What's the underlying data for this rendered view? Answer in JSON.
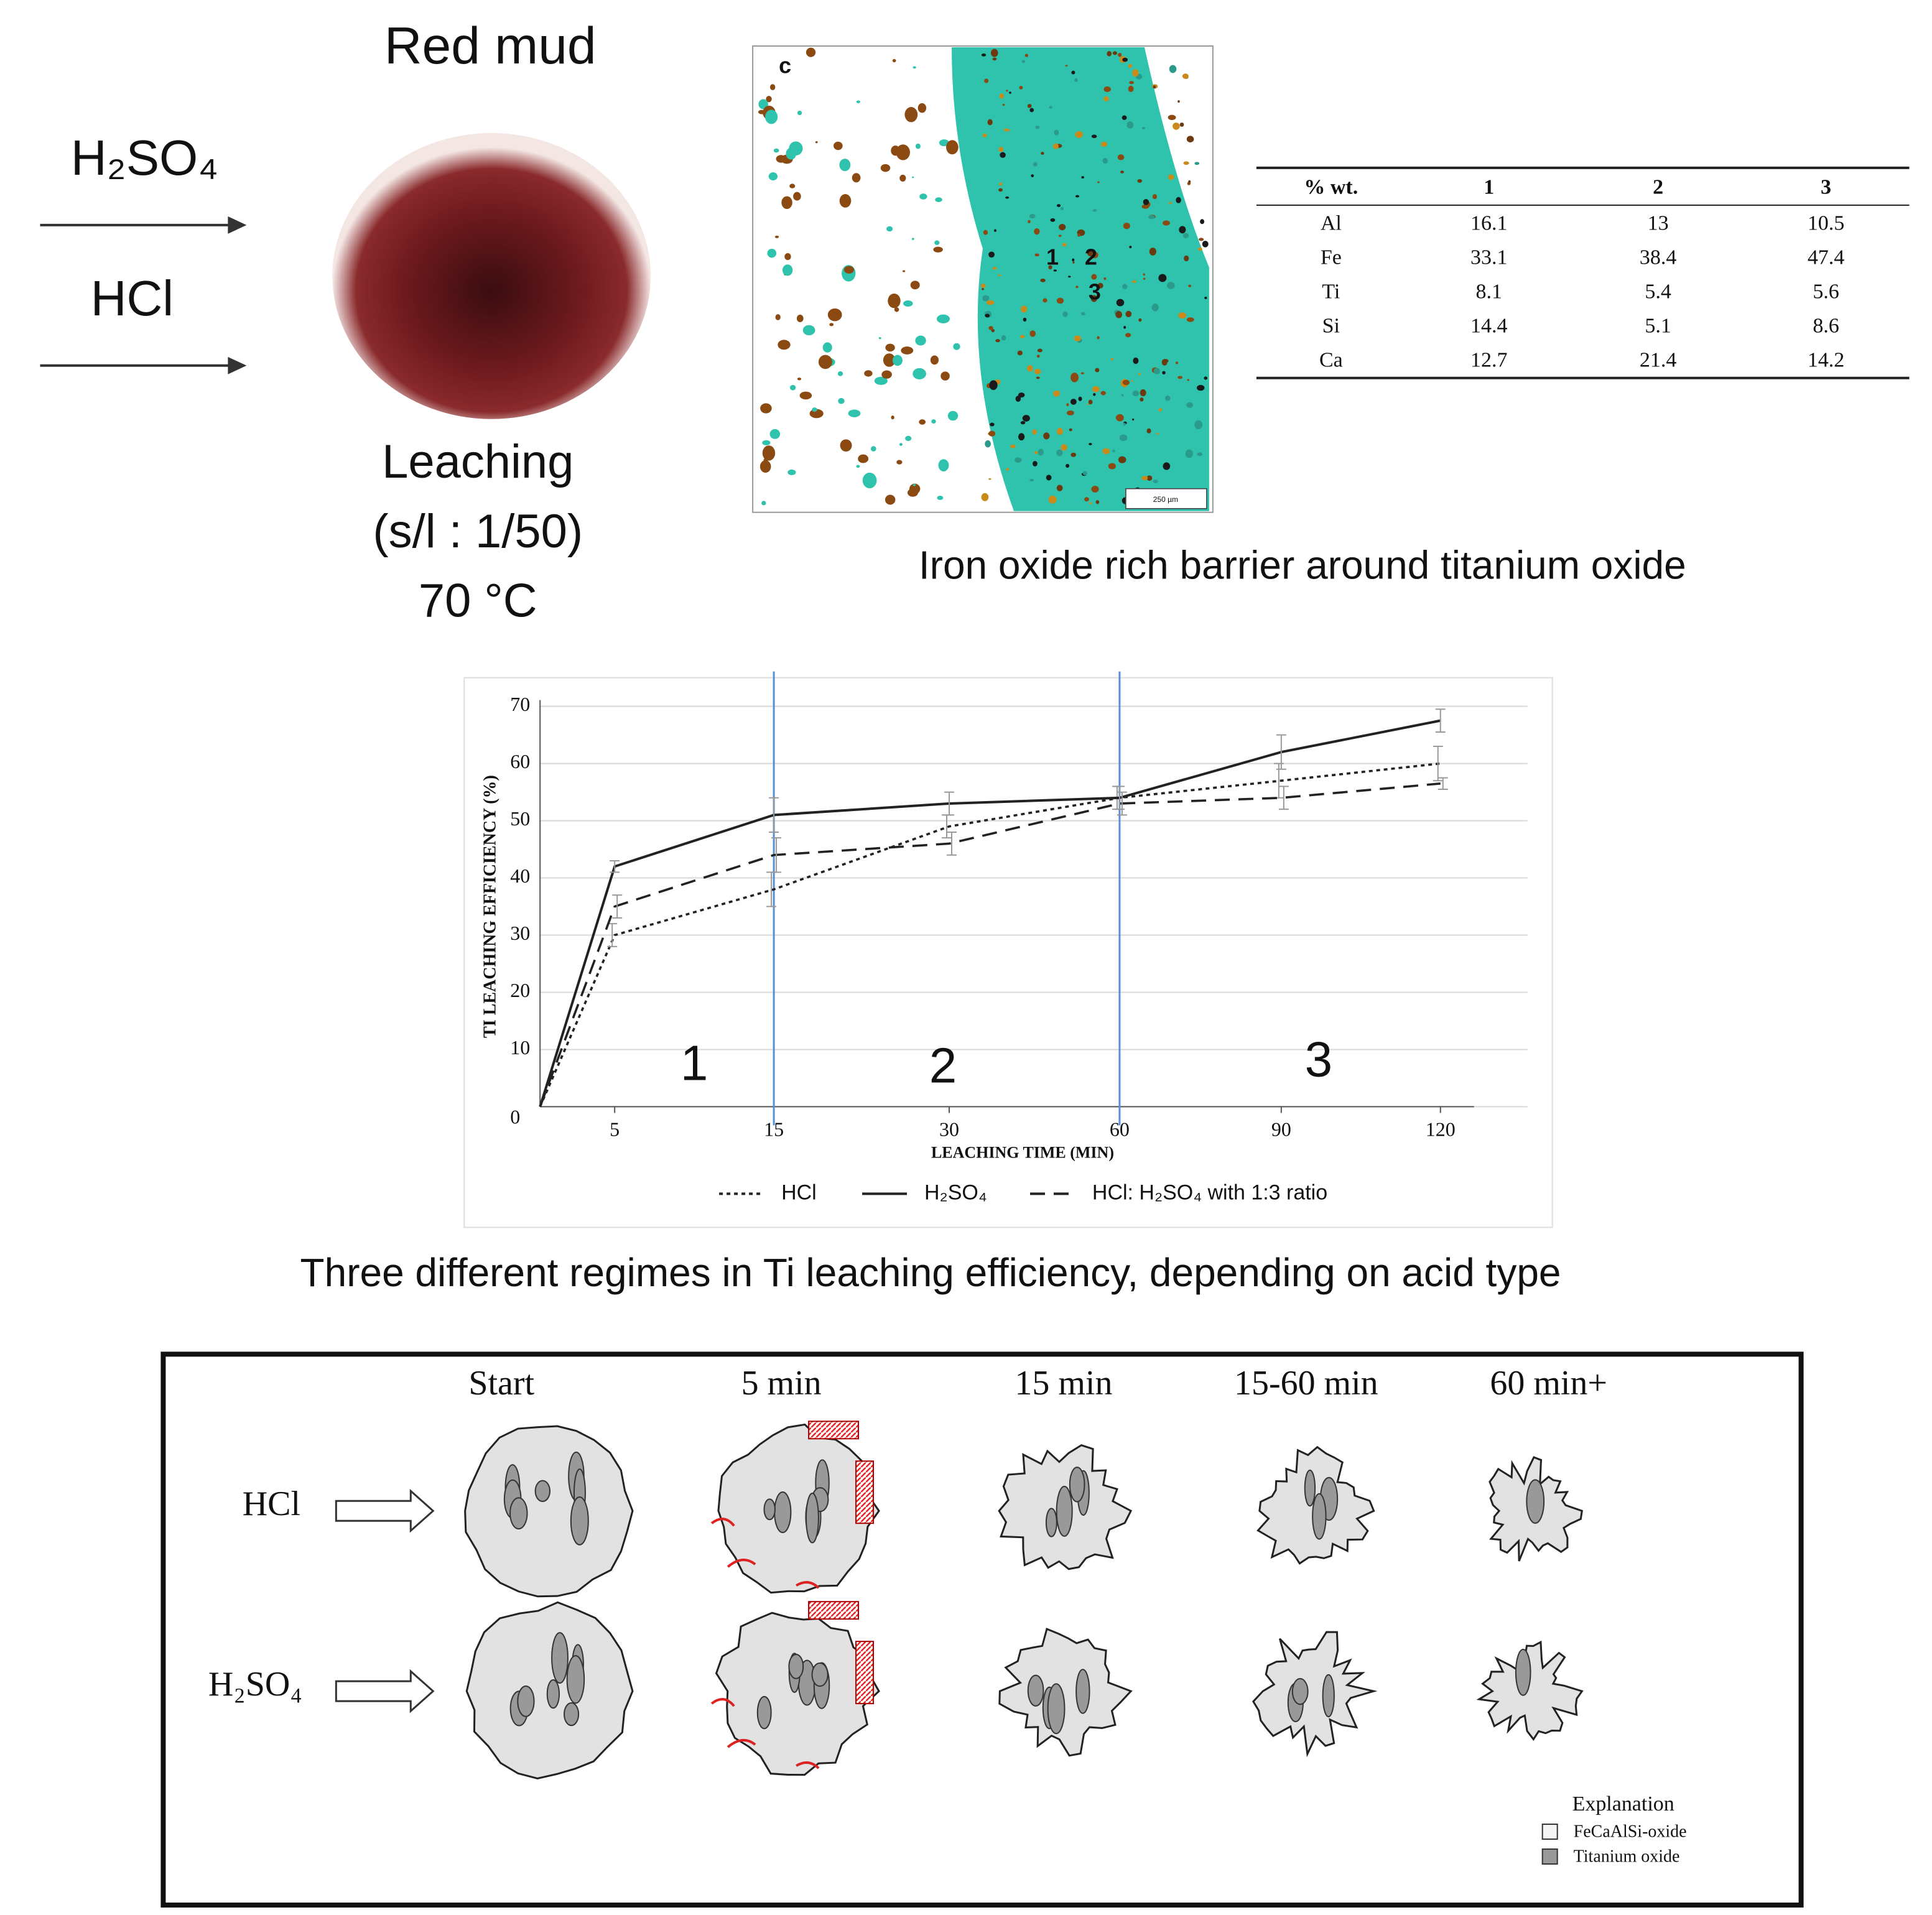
{
  "header": {
    "acids": [
      "H₂SO₄",
      "HCl"
    ],
    "material": "Red mud",
    "conditions": [
      "Leaching",
      "(s/l : 1/50)",
      "70 °C"
    ]
  },
  "micrograph": {
    "panel_label": "c",
    "points": [
      "1",
      "2",
      "3"
    ],
    "scale_bar": "250 µm",
    "caption": "Iron oxide rich barrier around titanium oxide"
  },
  "table": {
    "header": [
      "% wt.",
      "1",
      "2",
      "3"
    ],
    "rows": [
      [
        "Al",
        "16.1",
        "13",
        "10.5"
      ],
      [
        "Fe",
        "33.1",
        "38.4",
        "47.4"
      ],
      [
        "Ti",
        "8.1",
        "5.4",
        "5.6"
      ],
      [
        "Si",
        "14.4",
        "5.1",
        "8.6"
      ],
      [
        "Ca",
        "12.7",
        "21.4",
        "14.2"
      ]
    ]
  },
  "chart_data": {
    "type": "line",
    "ylabel": "TI LEACHING EFFICIENCY (%)",
    "xlabel": "LEACHING TIME (MIN)",
    "categories": [
      null,
      "5",
      "15",
      "30",
      "60",
      "90",
      "120"
    ],
    "ylim": [
      0,
      70
    ],
    "yticks": [
      0,
      10,
      20,
      30,
      40,
      50,
      60,
      70
    ],
    "grid": true,
    "regime_lines": [
      "15",
      "60"
    ],
    "regime_labels": [
      "1",
      "2",
      "3"
    ],
    "series": [
      {
        "name": "HCl",
        "color": "#222222",
        "style": "dotted",
        "values": [
          0,
          30,
          38,
          49,
          54,
          57,
          60
        ],
        "errors": [
          null,
          2,
          3,
          2,
          2,
          3,
          3
        ]
      },
      {
        "name": "H₂SO₄",
        "color": "#222222",
        "style": "solid",
        "values": [
          0,
          42,
          51,
          53,
          54,
          62,
          67.5
        ],
        "errors": [
          null,
          1,
          3,
          2,
          2,
          3,
          2
        ]
      },
      {
        "name": "HCl: H₂SO₄ with 1:3 ratio",
        "color": "#222222",
        "style": "dashed",
        "values": [
          0,
          35,
          44,
          46,
          53,
          54,
          56.5
        ],
        "errors": [
          null,
          2,
          3,
          2,
          2,
          2,
          1
        ]
      }
    ],
    "caption": "Three different regimes in Ti leaching efficiency, depending on acid type"
  },
  "schematic": {
    "stages": [
      "Start",
      "5 min",
      "15 min",
      "15-60  min",
      "60 min+"
    ],
    "rows": [
      "HCl",
      "H₂SO₄"
    ],
    "legend_title": "Explanation",
    "legend_items": [
      "FeCaAlSi-oxide",
      "Titanium oxide"
    ]
  }
}
